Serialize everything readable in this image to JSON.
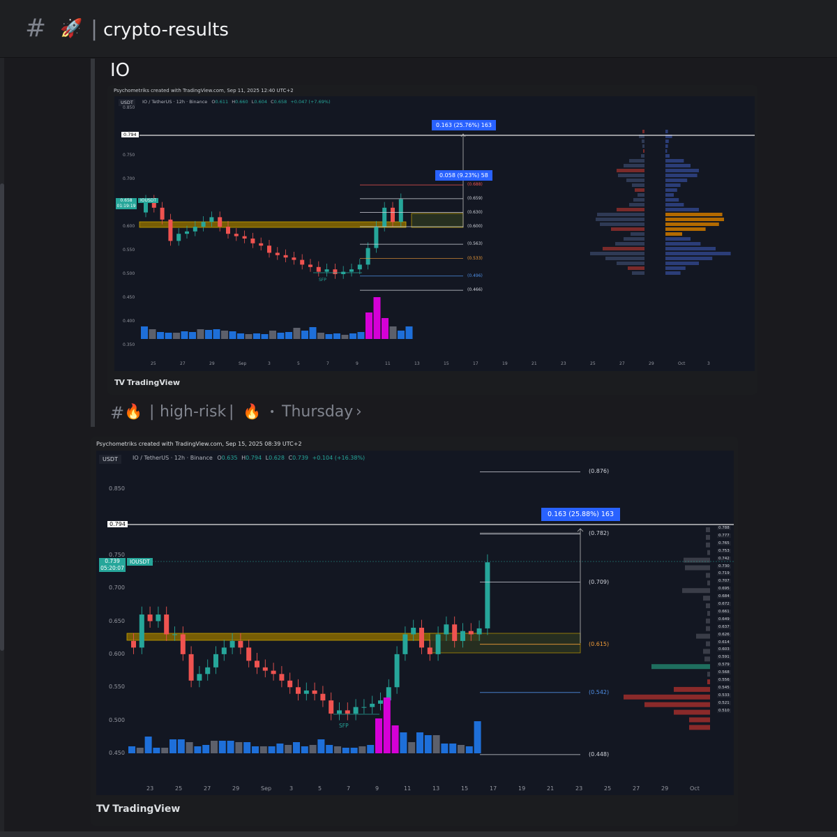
{
  "channel": {
    "hash": "#",
    "emoji": "🚀",
    "separator": "|",
    "name": "crypto-results"
  },
  "message": {
    "title": "IO"
  },
  "chart1": {
    "credit": "Psychometriks created with TradingView.com, Sep 11, 2025 12:40 UTC+2",
    "currency": "USDT",
    "symbol_line": "IO / TetherUS · 12h · Binance",
    "ohlc": {
      "o": "0.611",
      "h": "0.660",
      "l": "0.604",
      "c": "0.658",
      "chg": "+0.047 (+7.69%)"
    },
    "price_badge": "0.658",
    "symbol_badge": "IOUSDT",
    "countdown": "01:19:19",
    "line_label": "0.794",
    "y_ticks": [
      "0.850",
      "0.750",
      "0.700",
      "0.600",
      "0.550",
      "0.500",
      "0.450",
      "0.400",
      "0.350"
    ],
    "x_ticks": [
      "25",
      "27",
      "29",
      "Sep",
      "3",
      "5",
      "7",
      "9",
      "11",
      "13",
      "15",
      "17",
      "19",
      "21",
      "23",
      "25",
      "27",
      "29",
      "Oct",
      "3"
    ],
    "measure_big": "0.163 (25.76%) 163",
    "measure_small": "0.058 (9.23%) 58",
    "levels": [
      "(0.688)",
      "(0.659)",
      "(0.630)",
      "(0.600)",
      "(0.563)",
      "(0.533)",
      "(0.496)",
      "(0.466)"
    ],
    "sfp": "SFP",
    "logo": "TradingView",
    "colors": {
      "up": "#26a69a",
      "down": "#ef5350",
      "vol_blue": "#1e6fd9",
      "vol_pink": "#d500d6",
      "zone": "#c8a400"
    }
  },
  "highrisk_bar": {
    "hash": "#",
    "emoji": "🔥",
    "sep": "|",
    "name": "high-risk",
    "sep2": "|",
    "emoji2": "🔥",
    "dot": "•",
    "thread": "Thursday",
    "chevron": "›"
  },
  "chart2": {
    "credit": "Psychometriks created with TradingView.com, Sep 15, 2025 08:39 UTC+2",
    "currency": "USDT",
    "symbol_line": "IO / TetherUS · 12h · Binance",
    "ohlc": {
      "o": "0.635",
      "h": "0.794",
      "l": "0.628",
      "c": "0.739",
      "chg": "+0.104 (+16.38%)"
    },
    "price_badge": "0.739",
    "symbol_badge": "IOUSDT",
    "countdown": "05:20:07",
    "line_label": "0.794",
    "y_ticks": [
      "0.850",
      "0.750",
      "0.700",
      "0.650",
      "0.600",
      "0.550",
      "0.500",
      "0.450"
    ],
    "x_ticks": [
      "23",
      "25",
      "27",
      "29",
      "Sep",
      "3",
      "5",
      "7",
      "9",
      "11",
      "13",
      "15",
      "17",
      "19",
      "21",
      "23",
      "25",
      "27",
      "29",
      "Oct"
    ],
    "measure_big": "0.163 (25.88%) 163",
    "levels": [
      "(0.876)",
      "(0.782)",
      "(0.709)",
      "(0.615)",
      "(0.542)",
      "(0.448)"
    ],
    "right_prices": [
      "0.788",
      "0.777",
      "0.765",
      "0.753",
      "0.742",
      "0.730",
      "0.719",
      "0.707",
      "0.695",
      "0.684",
      "0.672",
      "0.661",
      "0.649",
      "0.637",
      "0.626",
      "0.614",
      "0.603",
      "0.591",
      "0.579",
      "0.568",
      "0.556",
      "0.545",
      "0.533",
      "0.521",
      "0.510"
    ],
    "sfp": "SFP",
    "logo": "TradingView"
  }
}
